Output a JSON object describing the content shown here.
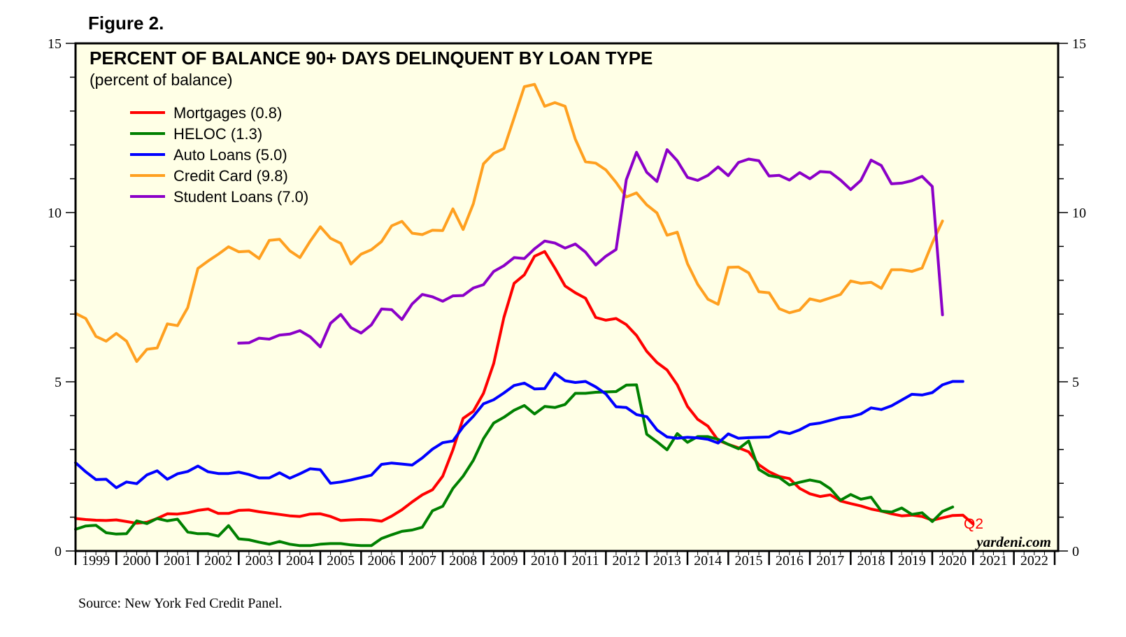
{
  "figure_label": "Figure 2.",
  "source": "Source: New York Fed Credit Panel.",
  "watermark": "yardeni.com",
  "end_label": "Q2",
  "colors": {
    "plot_bg": "#ffffe6",
    "mortgages": "#ff0000",
    "heloc": "#008000",
    "auto": "#0000ff",
    "credit": "#ffa020",
    "student": "#8b00c8"
  },
  "chart_data": {
    "type": "line",
    "title": "PERCENT OF BALANCE 90+ DAYS DELINQUENT BY LOAN TYPE",
    "subtitle": "(percent of balance)",
    "xlabel": "",
    "ylabel": "",
    "ylim": [
      0,
      15
    ],
    "xlim": [
      1999.0,
      2023.0
    ],
    "y_ticks": [
      "0",
      "5",
      "10",
      "15"
    ],
    "x_tick_labels": [
      "1999",
      "2000",
      "2001",
      "2002",
      "2003",
      "2004",
      "2005",
      "2006",
      "2007",
      "2008",
      "2009",
      "2010",
      "2011",
      "2012",
      "2013",
      "2014",
      "2015",
      "2016",
      "2017",
      "2018",
      "2019",
      "2020",
      "2021",
      "2022"
    ],
    "legend_placement": "top-left",
    "series": [
      {
        "name": "Mortgages (0.8)",
        "key": "mortgages",
        "start": 1999.0,
        "step": 0.25,
        "values": [
          0.96,
          0.93,
          0.91,
          0.9,
          0.92,
          0.87,
          0.82,
          0.85,
          0.96,
          1.1,
          1.09,
          1.13,
          1.2,
          1.24,
          1.11,
          1.11,
          1.2,
          1.21,
          1.16,
          1.12,
          1.08,
          1.04,
          1.02,
          1.09,
          1.1,
          1.02,
          0.9,
          0.92,
          0.93,
          0.92,
          0.88,
          1.03,
          1.22,
          1.45,
          1.66,
          1.81,
          2.21,
          2.99,
          3.92,
          4.13,
          4.66,
          5.54,
          6.9,
          7.91,
          8.16,
          8.71,
          8.85,
          8.36,
          7.83,
          7.63,
          7.47,
          6.9,
          6.82,
          6.87,
          6.69,
          6.37,
          5.9,
          5.57,
          5.35,
          4.91,
          4.27,
          3.89,
          3.69,
          3.27,
          3.15,
          3.05,
          2.93,
          2.55,
          2.34,
          2.2,
          2.14,
          1.85,
          1.69,
          1.61,
          1.66,
          1.48,
          1.4,
          1.33,
          1.24,
          1.18,
          1.1,
          1.04,
          1.06,
          1.02,
          0.91,
          0.98,
          1.05,
          1.06,
          0.8
        ]
      },
      {
        "name": "HELOC (1.3)",
        "key": "heloc",
        "start": 1999.0,
        "step": 0.25,
        "values": [
          0.64,
          0.74,
          0.76,
          0.54,
          0.5,
          0.51,
          0.89,
          0.81,
          0.96,
          0.89,
          0.94,
          0.56,
          0.51,
          0.51,
          0.44,
          0.75,
          0.36,
          0.33,
          0.26,
          0.2,
          0.28,
          0.2,
          0.16,
          0.16,
          0.2,
          0.22,
          0.22,
          0.18,
          0.16,
          0.16,
          0.37,
          0.48,
          0.58,
          0.62,
          0.7,
          1.19,
          1.32,
          1.85,
          2.21,
          2.68,
          3.32,
          3.78,
          3.95,
          4.16,
          4.3,
          4.05,
          4.27,
          4.24,
          4.33,
          4.66,
          4.66,
          4.69,
          4.7,
          4.71,
          4.9,
          4.91,
          3.45,
          3.23,
          2.99,
          3.47,
          3.21,
          3.38,
          3.38,
          3.3,
          3.15,
          3.02,
          3.25,
          2.41,
          2.23,
          2.17,
          1.95,
          2.03,
          2.1,
          2.04,
          1.84,
          1.5,
          1.67,
          1.53,
          1.59,
          1.18,
          1.15,
          1.27,
          1.08,
          1.13,
          0.87,
          1.17,
          1.3
        ]
      },
      {
        "name": "Auto Loans (5.0)",
        "key": "auto",
        "start": 1999.0,
        "step": 0.25,
        "values": [
          2.61,
          2.34,
          2.11,
          2.12,
          1.87,
          2.04,
          1.99,
          2.25,
          2.37,
          2.12,
          2.28,
          2.35,
          2.51,
          2.34,
          2.29,
          2.29,
          2.33,
          2.26,
          2.16,
          2.16,
          2.31,
          2.15,
          2.28,
          2.43,
          2.4,
          2.0,
          2.04,
          2.1,
          2.17,
          2.24,
          2.56,
          2.6,
          2.57,
          2.54,
          2.75,
          3.01,
          3.2,
          3.25,
          3.67,
          3.98,
          4.35,
          4.47,
          4.67,
          4.89,
          4.96,
          4.79,
          4.8,
          5.25,
          5.03,
          4.98,
          5.01,
          4.85,
          4.64,
          4.26,
          4.24,
          4.03,
          3.97,
          3.58,
          3.37,
          3.33,
          3.36,
          3.34,
          3.3,
          3.19,
          3.46,
          3.33,
          3.35,
          3.36,
          3.37,
          3.53,
          3.47,
          3.58,
          3.74,
          3.78,
          3.86,
          3.94,
          3.97,
          4.05,
          4.23,
          4.18,
          4.29,
          4.46,
          4.63,
          4.61,
          4.68,
          4.91,
          5.01,
          5.01
        ]
      },
      {
        "name": "Credit Card (9.8)",
        "key": "credit",
        "start": 1999.0,
        "step": 0.25,
        "values": [
          7.02,
          6.87,
          6.34,
          6.2,
          6.43,
          6.2,
          5.6,
          5.96,
          6.0,
          6.71,
          6.66,
          7.19,
          8.35,
          8.57,
          8.77,
          8.99,
          8.84,
          8.86,
          8.64,
          9.18,
          9.21,
          8.87,
          8.67,
          9.15,
          9.58,
          9.24,
          9.09,
          8.48,
          8.77,
          8.9,
          9.14,
          9.61,
          9.74,
          9.39,
          9.35,
          9.48,
          9.47,
          10.11,
          9.5,
          10.26,
          11.44,
          11.75,
          11.89,
          12.8,
          13.72,
          13.79,
          13.14,
          13.25,
          13.14,
          12.17,
          11.5,
          11.46,
          11.26,
          10.89,
          10.46,
          10.58,
          10.23,
          9.99,
          9.33,
          9.42,
          8.49,
          7.88,
          7.44,
          7.29,
          8.38,
          8.39,
          8.22,
          7.66,
          7.63,
          7.16,
          7.04,
          7.12,
          7.45,
          7.38,
          7.48,
          7.58,
          7.98,
          7.91,
          7.94,
          7.76,
          8.31,
          8.31,
          8.26,
          8.36,
          9.1,
          9.75
        ]
      },
      {
        "name": "Student Loans (7.0)",
        "key": "student",
        "start": 2003.0,
        "step": 0.25,
        "values": [
          6.14,
          6.15,
          6.29,
          6.26,
          6.38,
          6.41,
          6.51,
          6.33,
          6.03,
          6.73,
          6.99,
          6.6,
          6.44,
          6.68,
          7.15,
          7.13,
          6.84,
          7.3,
          7.58,
          7.51,
          7.38,
          7.54,
          7.55,
          7.77,
          7.87,
          8.26,
          8.43,
          8.67,
          8.64,
          8.93,
          9.16,
          9.1,
          8.95,
          9.07,
          8.83,
          8.45,
          8.71,
          8.91,
          10.97,
          11.78,
          11.19,
          10.92,
          11.86,
          11.53,
          11.04,
          10.95,
          11.1,
          11.35,
          11.09,
          11.48,
          11.58,
          11.53,
          11.08,
          11.1,
          10.96,
          11.18,
          11.0,
          11.21,
          11.19,
          10.96,
          10.68,
          10.95,
          11.55,
          11.39,
          10.85,
          10.87,
          10.94,
          11.07,
          10.77,
          6.98
        ]
      }
    ]
  }
}
